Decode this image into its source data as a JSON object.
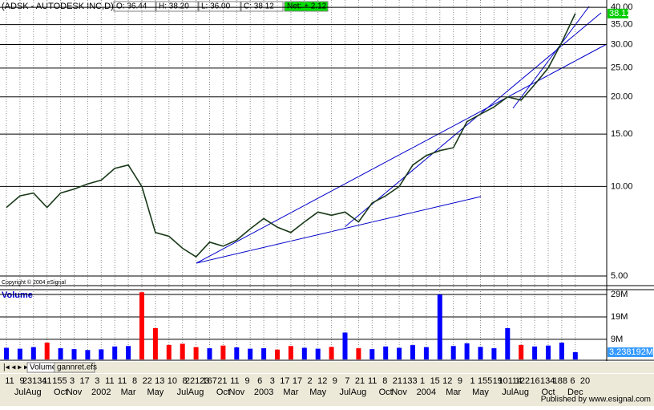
{
  "header": {
    "symbol": "(ADSK - AUTODESK INC,D) [",
    "open": "O: 36.44",
    "high": "H: 38.20",
    "low": "L: 36.00",
    "close": "C: 38.12",
    "net": "Net: + 2.12"
  },
  "copyright": "Copyright © 2004 eSignal",
  "tabs": [
    "Volume",
    "gannret.efs"
  ],
  "footer": "Published by www.esignal.com",
  "chart_data": [
    {
      "type": "line",
      "log_scale": true,
      "grid": true,
      "color": "#1a3a1a",
      "categories": [
        null,
        "Jul",
        "Aug",
        null,
        "Oct",
        "Nov",
        null,
        "2002",
        null,
        "Mar",
        null,
        "May",
        null,
        "Jul",
        "Aug",
        null,
        "Oct",
        "Nov",
        null,
        "2003",
        null,
        "Mar",
        null,
        "May",
        null,
        "Jul",
        "Aug",
        null,
        "Oct",
        "Nov",
        null,
        "2004",
        null,
        "Mar",
        null,
        "May",
        null,
        "Jul",
        "Aug",
        null,
        "Oct",
        null,
        "Dec"
      ],
      "x_day_labels": [
        "11",
        "9",
        "23134",
        "11",
        "155",
        "3",
        "17",
        "3",
        "11",
        "11",
        "8",
        "22",
        "13",
        "10",
        "8",
        "22123",
        "167",
        "21",
        "11",
        "9",
        "6",
        "3",
        "17",
        "17",
        "2",
        "12",
        "9",
        "7",
        "21",
        "11",
        "8",
        "21",
        "133",
        "1",
        "15",
        "12",
        "9",
        "1",
        "155",
        "19",
        "10114",
        "122",
        "16",
        "134",
        "188",
        "6",
        "20"
      ],
      "values": [
        8.5,
        9.3,
        9.5,
        8.5,
        9.5,
        9.8,
        10.2,
        10.5,
        11.5,
        11.8,
        10.0,
        7.0,
        6.8,
        6.2,
        5.8,
        6.5,
        6.3,
        6.6,
        7.2,
        7.8,
        7.3,
        7.0,
        7.6,
        8.2,
        8.0,
        8.2,
        7.6,
        8.8,
        9.3,
        10.0,
        11.8,
        12.7,
        13.2,
        13.5,
        16.5,
        17.5,
        18.5,
        20.0,
        19.5,
        22.0,
        25.0,
        30.5,
        38.12
      ],
      "last_label": "38.12",
      "ylim": [
        4.67,
        41.3
      ],
      "yticks": [
        {
          "value": 5,
          "label": "5.00"
        },
        {
          "value": 10,
          "label": "10.00"
        },
        {
          "value": 15,
          "label": "15.00"
        },
        {
          "value": 20,
          "label": "20.00"
        },
        {
          "value": 25,
          "label": "25.00"
        },
        {
          "value": 30,
          "label": "30.00"
        },
        {
          "value": 35,
          "label": "35.00"
        },
        {
          "value": 40,
          "label": "40.00"
        }
      ]
    },
    {
      "type": "bar",
      "title": "Volume",
      "up_color": "#0000ff",
      "down_color": "#ff0000",
      "values": [
        5.2,
        4.8,
        5.5,
        7.5,
        5.0,
        4.6,
        4.2,
        4.5,
        5.8,
        6.0,
        30.0,
        14.0,
        6.5,
        7.0,
        5.5,
        5.0,
        6.2,
        5.4,
        4.8,
        5.0,
        4.4,
        6.0,
        5.2,
        4.8,
        5.6,
        12.0,
        5.0,
        4.6,
        5.8,
        5.2,
        6.4,
        5.5,
        29.0,
        6.0,
        7.2,
        5.6,
        5.0,
        14.0,
        6.5,
        5.8,
        6.2,
        7.5,
        3.238192
      ],
      "last_label": "3.238192M",
      "ylim": [
        0,
        30.8
      ],
      "yticks": [
        {
          "value": 9,
          "label": "9M"
        },
        {
          "value": 19,
          "label": "19M"
        },
        {
          "value": 29,
          "label": "29M"
        }
      ]
    }
  ]
}
